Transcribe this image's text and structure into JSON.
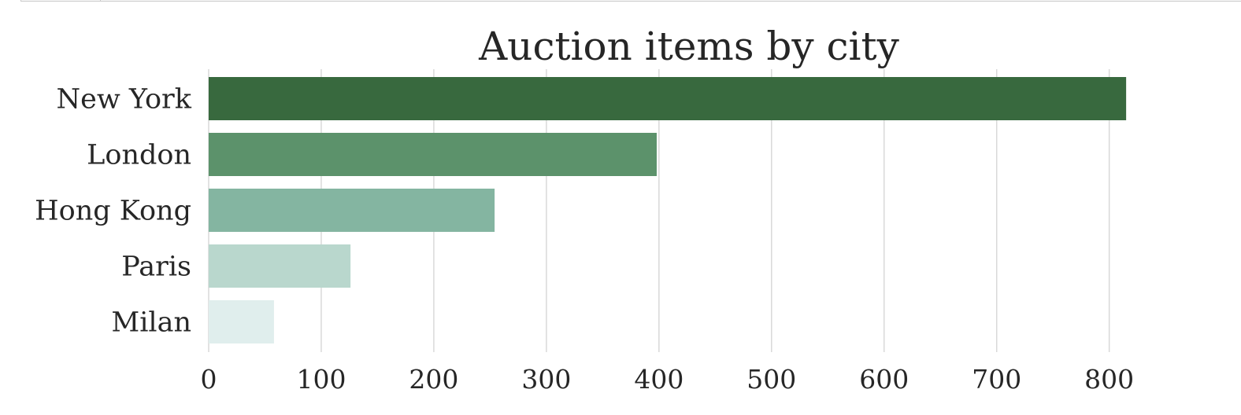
{
  "chart_data": {
    "type": "bar",
    "orientation": "horizontal",
    "title": "Auction items by city",
    "xlabel": "",
    "ylabel": "",
    "categories": [
      "New York",
      "London",
      "Hong Kong",
      "Paris",
      "Milan"
    ],
    "values": [
      815,
      398,
      254,
      126,
      58
    ],
    "colors": [
      "#38693e",
      "#5c926b",
      "#84b5a1",
      "#b9d7cd",
      "#e0eeed"
    ],
    "xlim": [
      0,
      850
    ],
    "xticks": [
      0,
      100,
      200,
      300,
      400,
      500,
      600,
      700,
      800
    ],
    "xtick_labels": [
      "0",
      "100",
      "200",
      "300",
      "400",
      "500",
      "600",
      "700",
      "800"
    ],
    "grid": "vertical",
    "grid_color": "#d9d9d9",
    "legend": "none"
  }
}
